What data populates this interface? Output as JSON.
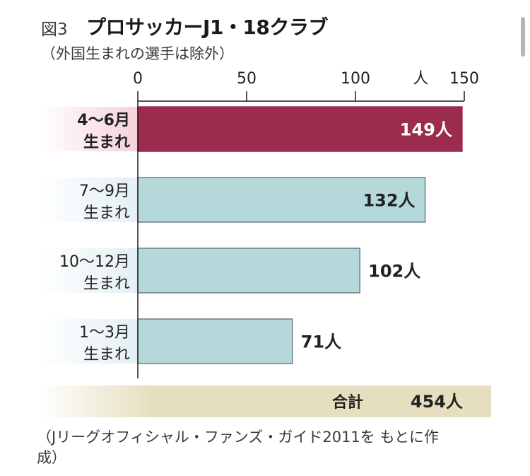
{
  "figure_label": "図3",
  "title": "プロサッカーJ1・18クラブ",
  "subtitle": "（外国生まれの選手は除外）",
  "source": "（Jリーグオフィシャル・ファンズ・ガイド2011を もとに作成）",
  "total": {
    "label": "合計",
    "value": "454人"
  },
  "colors": {
    "highlight_bar": "#9b2c4d",
    "bar": "#b5d9da",
    "bar_stroke": "#6e7d80",
    "highlight_label_bg": "#f5d2db",
    "label_bg": "#e4f0f4",
    "total_bg": "#e6dfbf"
  },
  "chart_data": {
    "type": "bar",
    "orientation": "horizontal",
    "categories": [
      "4〜6月 生まれ",
      "7〜9月 生まれ",
      "10〜12月 生まれ",
      "1〜3月 生まれ"
    ],
    "category_lines": [
      [
        "4〜6月",
        "生まれ"
      ],
      [
        "7〜9月",
        "生まれ"
      ],
      [
        "10〜12月",
        "生まれ"
      ],
      [
        "1〜3月",
        "生まれ"
      ]
    ],
    "values": [
      149,
      132,
      102,
      71
    ],
    "value_labels": [
      "149人",
      "132人",
      "102人",
      "71人"
    ],
    "highlight_index": 0,
    "axis_ticks": [
      "0",
      "50",
      "100",
      "150"
    ],
    "tick_values": [
      0,
      50,
      100,
      150
    ],
    "unit": "人",
    "xlim": [
      0,
      150
    ],
    "grid": false
  }
}
